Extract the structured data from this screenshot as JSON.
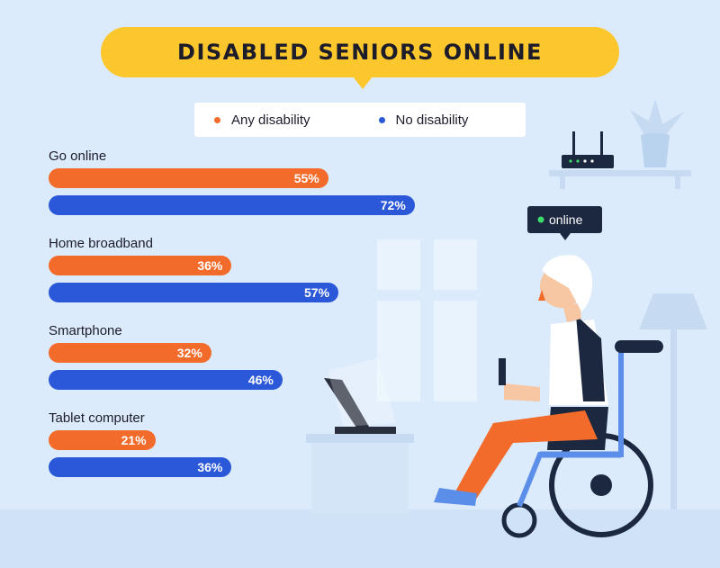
{
  "title": "DISABLED SENIORS ONLINE",
  "legend": [
    {
      "label": "Any disability",
      "color": "#f26b2a"
    },
    {
      "label": "No disability",
      "color": "#2a58d8"
    }
  ],
  "chart_data": {
    "type": "bar",
    "orientation": "horizontal",
    "categories": [
      "Go online",
      "Home broadband",
      "Smartphone",
      "Tablet computer"
    ],
    "series": [
      {
        "name": "Any disability",
        "color": "#f26b2a",
        "values": [
          55,
          36,
          32,
          21
        ],
        "labels": [
          "55%",
          "36%",
          "32%",
          "21%"
        ]
      },
      {
        "name": "No disability",
        "color": "#2a58d8",
        "values": [
          72,
          57,
          46,
          36
        ],
        "labels": [
          "72%",
          "57%",
          "46%",
          "36%"
        ]
      }
    ],
    "unit": "%",
    "xlim": [
      0,
      100
    ],
    "grid": false,
    "legend_position": "top"
  },
  "illustration": {
    "speech_bubble": "online",
    "speech_dot_color": "#3ddc6b",
    "subject": "senior-in-wheelchair-using-phone"
  }
}
